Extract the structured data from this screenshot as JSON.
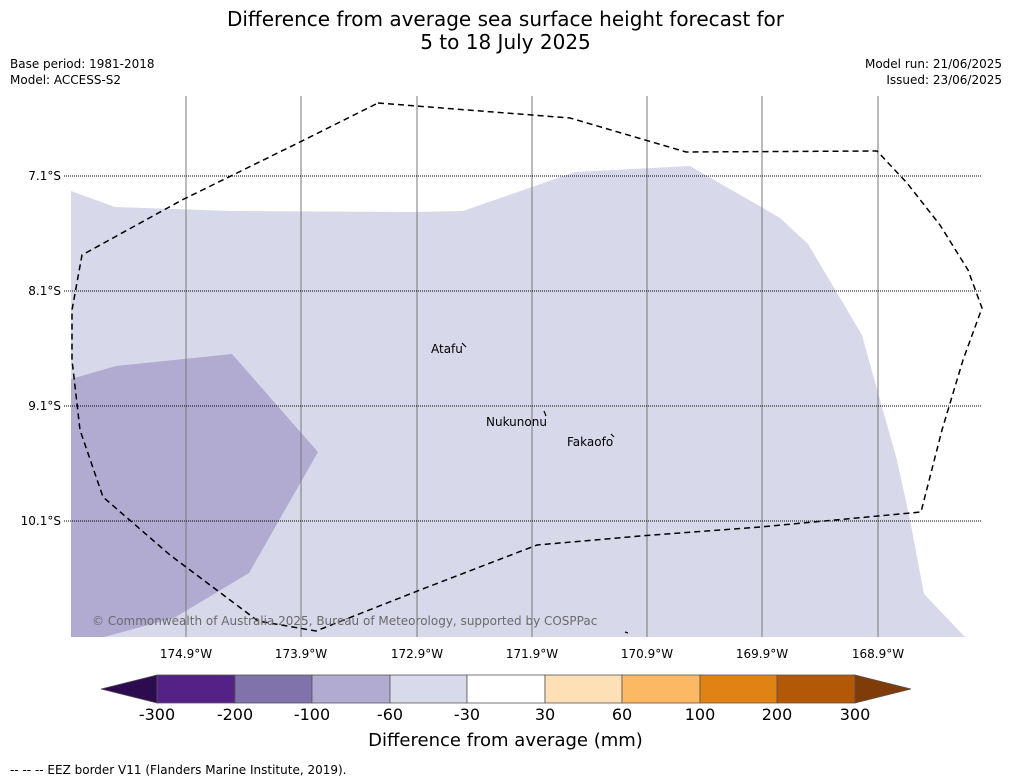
{
  "title": {
    "line1": "Difference from average sea surface height forecast for",
    "line2": "5 to 18 July 2025"
  },
  "meta_left": {
    "base_period": "Base period: 1981-2018",
    "model": "Model: ACCESS-S2"
  },
  "meta_right": {
    "model_run": "Model run: 21/06/2025",
    "issued": "Issued: 23/06/2025"
  },
  "map": {
    "lat_labels": [
      "7.1°S",
      "8.1°S",
      "9.1°S",
      "10.1°S"
    ],
    "lon_labels": [
      "174.9°W",
      "173.9°W",
      "172.9°W",
      "171.9°W",
      "170.9°W",
      "169.9°W",
      "168.9°W"
    ],
    "places": [
      {
        "name": "Atafu"
      },
      {
        "name": "Nukunonu"
      },
      {
        "name": "Fakaofo"
      }
    ],
    "copyright": "© Commonwealth of Australia 2025, Bureau of Meteorology, supported by COSPPac",
    "fill_colors": {
      "-30_to_-60": "#d7d8ea",
      "-60_to_-100": "#b1abd2"
    }
  },
  "colorbar": {
    "ticks": [
      "-300",
      "-200",
      "-100",
      "-60",
      "-30",
      "30",
      "60",
      "100",
      "200",
      "300"
    ],
    "colors": [
      "#2d0b4f",
      "#542287",
      "#8073ac",
      "#b1abd2",
      "#d8daeb",
      "#ffffff",
      "#fee0b6",
      "#fdb863",
      "#e08214",
      "#b35806",
      "#7f3b08"
    ],
    "title": "Difference from average (mm)"
  },
  "legend_note": "--  --  -- EEZ border V11 (Flanders Marine Institute, 2019)."
}
